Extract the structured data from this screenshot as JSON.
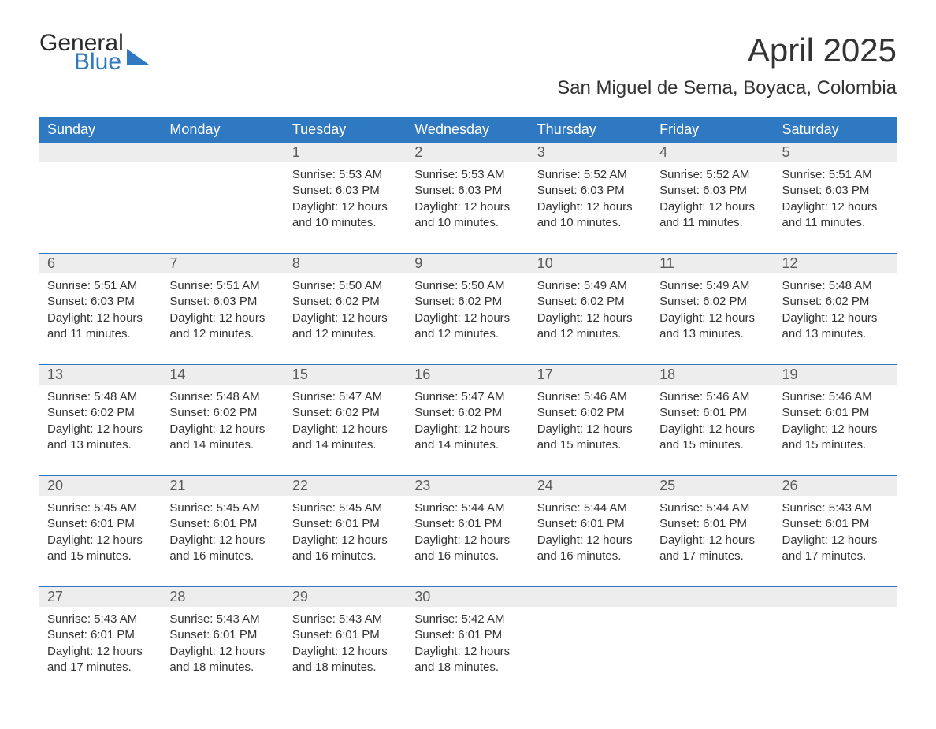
{
  "brand": {
    "word1": "General",
    "word2": "Blue",
    "color": "#2f78c2"
  },
  "title": "April 2025",
  "location": "San Miguel de Sema, Boyaca, Colombia",
  "colors": {
    "header_bg": "#2f78c2",
    "header_text": "#ffffff",
    "daynum_bg": "#ededed",
    "text": "#333333",
    "background": "#ffffff",
    "row_border": "#2f78c2"
  },
  "typography": {
    "title_fontsize": 42,
    "location_fontsize": 24,
    "weekday_fontsize": 18,
    "daynum_fontsize": 18,
    "body_fontsize": 15
  },
  "calendar": {
    "type": "table",
    "weekdays": [
      "Sunday",
      "Monday",
      "Tuesday",
      "Wednesday",
      "Thursday",
      "Friday",
      "Saturday"
    ],
    "weeks": [
      [
        null,
        null,
        {
          "day": "1",
          "sunrise": "Sunrise: 5:53 AM",
          "sunset": "Sunset: 6:03 PM",
          "daylight": "Daylight: 12 hours and 10 minutes."
        },
        {
          "day": "2",
          "sunrise": "Sunrise: 5:53 AM",
          "sunset": "Sunset: 6:03 PM",
          "daylight": "Daylight: 12 hours and 10 minutes."
        },
        {
          "day": "3",
          "sunrise": "Sunrise: 5:52 AM",
          "sunset": "Sunset: 6:03 PM",
          "daylight": "Daylight: 12 hours and 10 minutes."
        },
        {
          "day": "4",
          "sunrise": "Sunrise: 5:52 AM",
          "sunset": "Sunset: 6:03 PM",
          "daylight": "Daylight: 12 hours and 11 minutes."
        },
        {
          "day": "5",
          "sunrise": "Sunrise: 5:51 AM",
          "sunset": "Sunset: 6:03 PM",
          "daylight": "Daylight: 12 hours and 11 minutes."
        }
      ],
      [
        {
          "day": "6",
          "sunrise": "Sunrise: 5:51 AM",
          "sunset": "Sunset: 6:03 PM",
          "daylight": "Daylight: 12 hours and 11 minutes."
        },
        {
          "day": "7",
          "sunrise": "Sunrise: 5:51 AM",
          "sunset": "Sunset: 6:03 PM",
          "daylight": "Daylight: 12 hours and 12 minutes."
        },
        {
          "day": "8",
          "sunrise": "Sunrise: 5:50 AM",
          "sunset": "Sunset: 6:02 PM",
          "daylight": "Daylight: 12 hours and 12 minutes."
        },
        {
          "day": "9",
          "sunrise": "Sunrise: 5:50 AM",
          "sunset": "Sunset: 6:02 PM",
          "daylight": "Daylight: 12 hours and 12 minutes."
        },
        {
          "day": "10",
          "sunrise": "Sunrise: 5:49 AM",
          "sunset": "Sunset: 6:02 PM",
          "daylight": "Daylight: 12 hours and 12 minutes."
        },
        {
          "day": "11",
          "sunrise": "Sunrise: 5:49 AM",
          "sunset": "Sunset: 6:02 PM",
          "daylight": "Daylight: 12 hours and 13 minutes."
        },
        {
          "day": "12",
          "sunrise": "Sunrise: 5:48 AM",
          "sunset": "Sunset: 6:02 PM",
          "daylight": "Daylight: 12 hours and 13 minutes."
        }
      ],
      [
        {
          "day": "13",
          "sunrise": "Sunrise: 5:48 AM",
          "sunset": "Sunset: 6:02 PM",
          "daylight": "Daylight: 12 hours and 13 minutes."
        },
        {
          "day": "14",
          "sunrise": "Sunrise: 5:48 AM",
          "sunset": "Sunset: 6:02 PM",
          "daylight": "Daylight: 12 hours and 14 minutes."
        },
        {
          "day": "15",
          "sunrise": "Sunrise: 5:47 AM",
          "sunset": "Sunset: 6:02 PM",
          "daylight": "Daylight: 12 hours and 14 minutes."
        },
        {
          "day": "16",
          "sunrise": "Sunrise: 5:47 AM",
          "sunset": "Sunset: 6:02 PM",
          "daylight": "Daylight: 12 hours and 14 minutes."
        },
        {
          "day": "17",
          "sunrise": "Sunrise: 5:46 AM",
          "sunset": "Sunset: 6:02 PM",
          "daylight": "Daylight: 12 hours and 15 minutes."
        },
        {
          "day": "18",
          "sunrise": "Sunrise: 5:46 AM",
          "sunset": "Sunset: 6:01 PM",
          "daylight": "Daylight: 12 hours and 15 minutes."
        },
        {
          "day": "19",
          "sunrise": "Sunrise: 5:46 AM",
          "sunset": "Sunset: 6:01 PM",
          "daylight": "Daylight: 12 hours and 15 minutes."
        }
      ],
      [
        {
          "day": "20",
          "sunrise": "Sunrise: 5:45 AM",
          "sunset": "Sunset: 6:01 PM",
          "daylight": "Daylight: 12 hours and 15 minutes."
        },
        {
          "day": "21",
          "sunrise": "Sunrise: 5:45 AM",
          "sunset": "Sunset: 6:01 PM",
          "daylight": "Daylight: 12 hours and 16 minutes."
        },
        {
          "day": "22",
          "sunrise": "Sunrise: 5:45 AM",
          "sunset": "Sunset: 6:01 PM",
          "daylight": "Daylight: 12 hours and 16 minutes."
        },
        {
          "day": "23",
          "sunrise": "Sunrise: 5:44 AM",
          "sunset": "Sunset: 6:01 PM",
          "daylight": "Daylight: 12 hours and 16 minutes."
        },
        {
          "day": "24",
          "sunrise": "Sunrise: 5:44 AM",
          "sunset": "Sunset: 6:01 PM",
          "daylight": "Daylight: 12 hours and 16 minutes."
        },
        {
          "day": "25",
          "sunrise": "Sunrise: 5:44 AM",
          "sunset": "Sunset: 6:01 PM",
          "daylight": "Daylight: 12 hours and 17 minutes."
        },
        {
          "day": "26",
          "sunrise": "Sunrise: 5:43 AM",
          "sunset": "Sunset: 6:01 PM",
          "daylight": "Daylight: 12 hours and 17 minutes."
        }
      ],
      [
        {
          "day": "27",
          "sunrise": "Sunrise: 5:43 AM",
          "sunset": "Sunset: 6:01 PM",
          "daylight": "Daylight: 12 hours and 17 minutes."
        },
        {
          "day": "28",
          "sunrise": "Sunrise: 5:43 AM",
          "sunset": "Sunset: 6:01 PM",
          "daylight": "Daylight: 12 hours and 18 minutes."
        },
        {
          "day": "29",
          "sunrise": "Sunrise: 5:43 AM",
          "sunset": "Sunset: 6:01 PM",
          "daylight": "Daylight: 12 hours and 18 minutes."
        },
        {
          "day": "30",
          "sunrise": "Sunrise: 5:42 AM",
          "sunset": "Sunset: 6:01 PM",
          "daylight": "Daylight: 12 hours and 18 minutes."
        },
        null,
        null,
        null
      ]
    ]
  }
}
